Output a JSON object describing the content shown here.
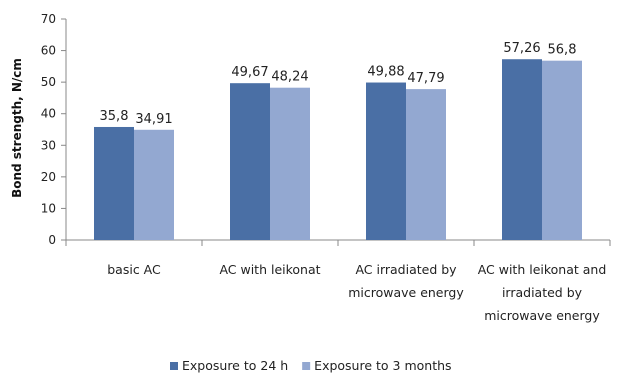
{
  "chart_data": {
    "type": "bar",
    "ylabel": "Bond strength, N/cm",
    "ylim": [
      0,
      70
    ],
    "ytick_step": 10,
    "categories": [
      [
        "basic AC"
      ],
      [
        "AC with leikonat"
      ],
      [
        "AC irradiated by",
        "microwave  energy"
      ],
      [
        "AC with leikonat and",
        "irradiated by",
        "microwave  energy"
      ]
    ],
    "series": [
      {
        "name": "Exposure to 24 h",
        "color": "#4a6fa5",
        "values": [
          35.8,
          49.67,
          49.88,
          57.26
        ],
        "labels": [
          "35,8",
          "49,67",
          "49,88",
          "57,26"
        ]
      },
      {
        "name": "Exposure to 3 months",
        "color": "#93a8d1",
        "values": [
          34.91,
          48.24,
          47.79,
          56.8
        ],
        "labels": [
          "34,91",
          "48,24",
          "47,79",
          "56,8"
        ]
      }
    ],
    "legend": "bottom",
    "grid": false
  }
}
